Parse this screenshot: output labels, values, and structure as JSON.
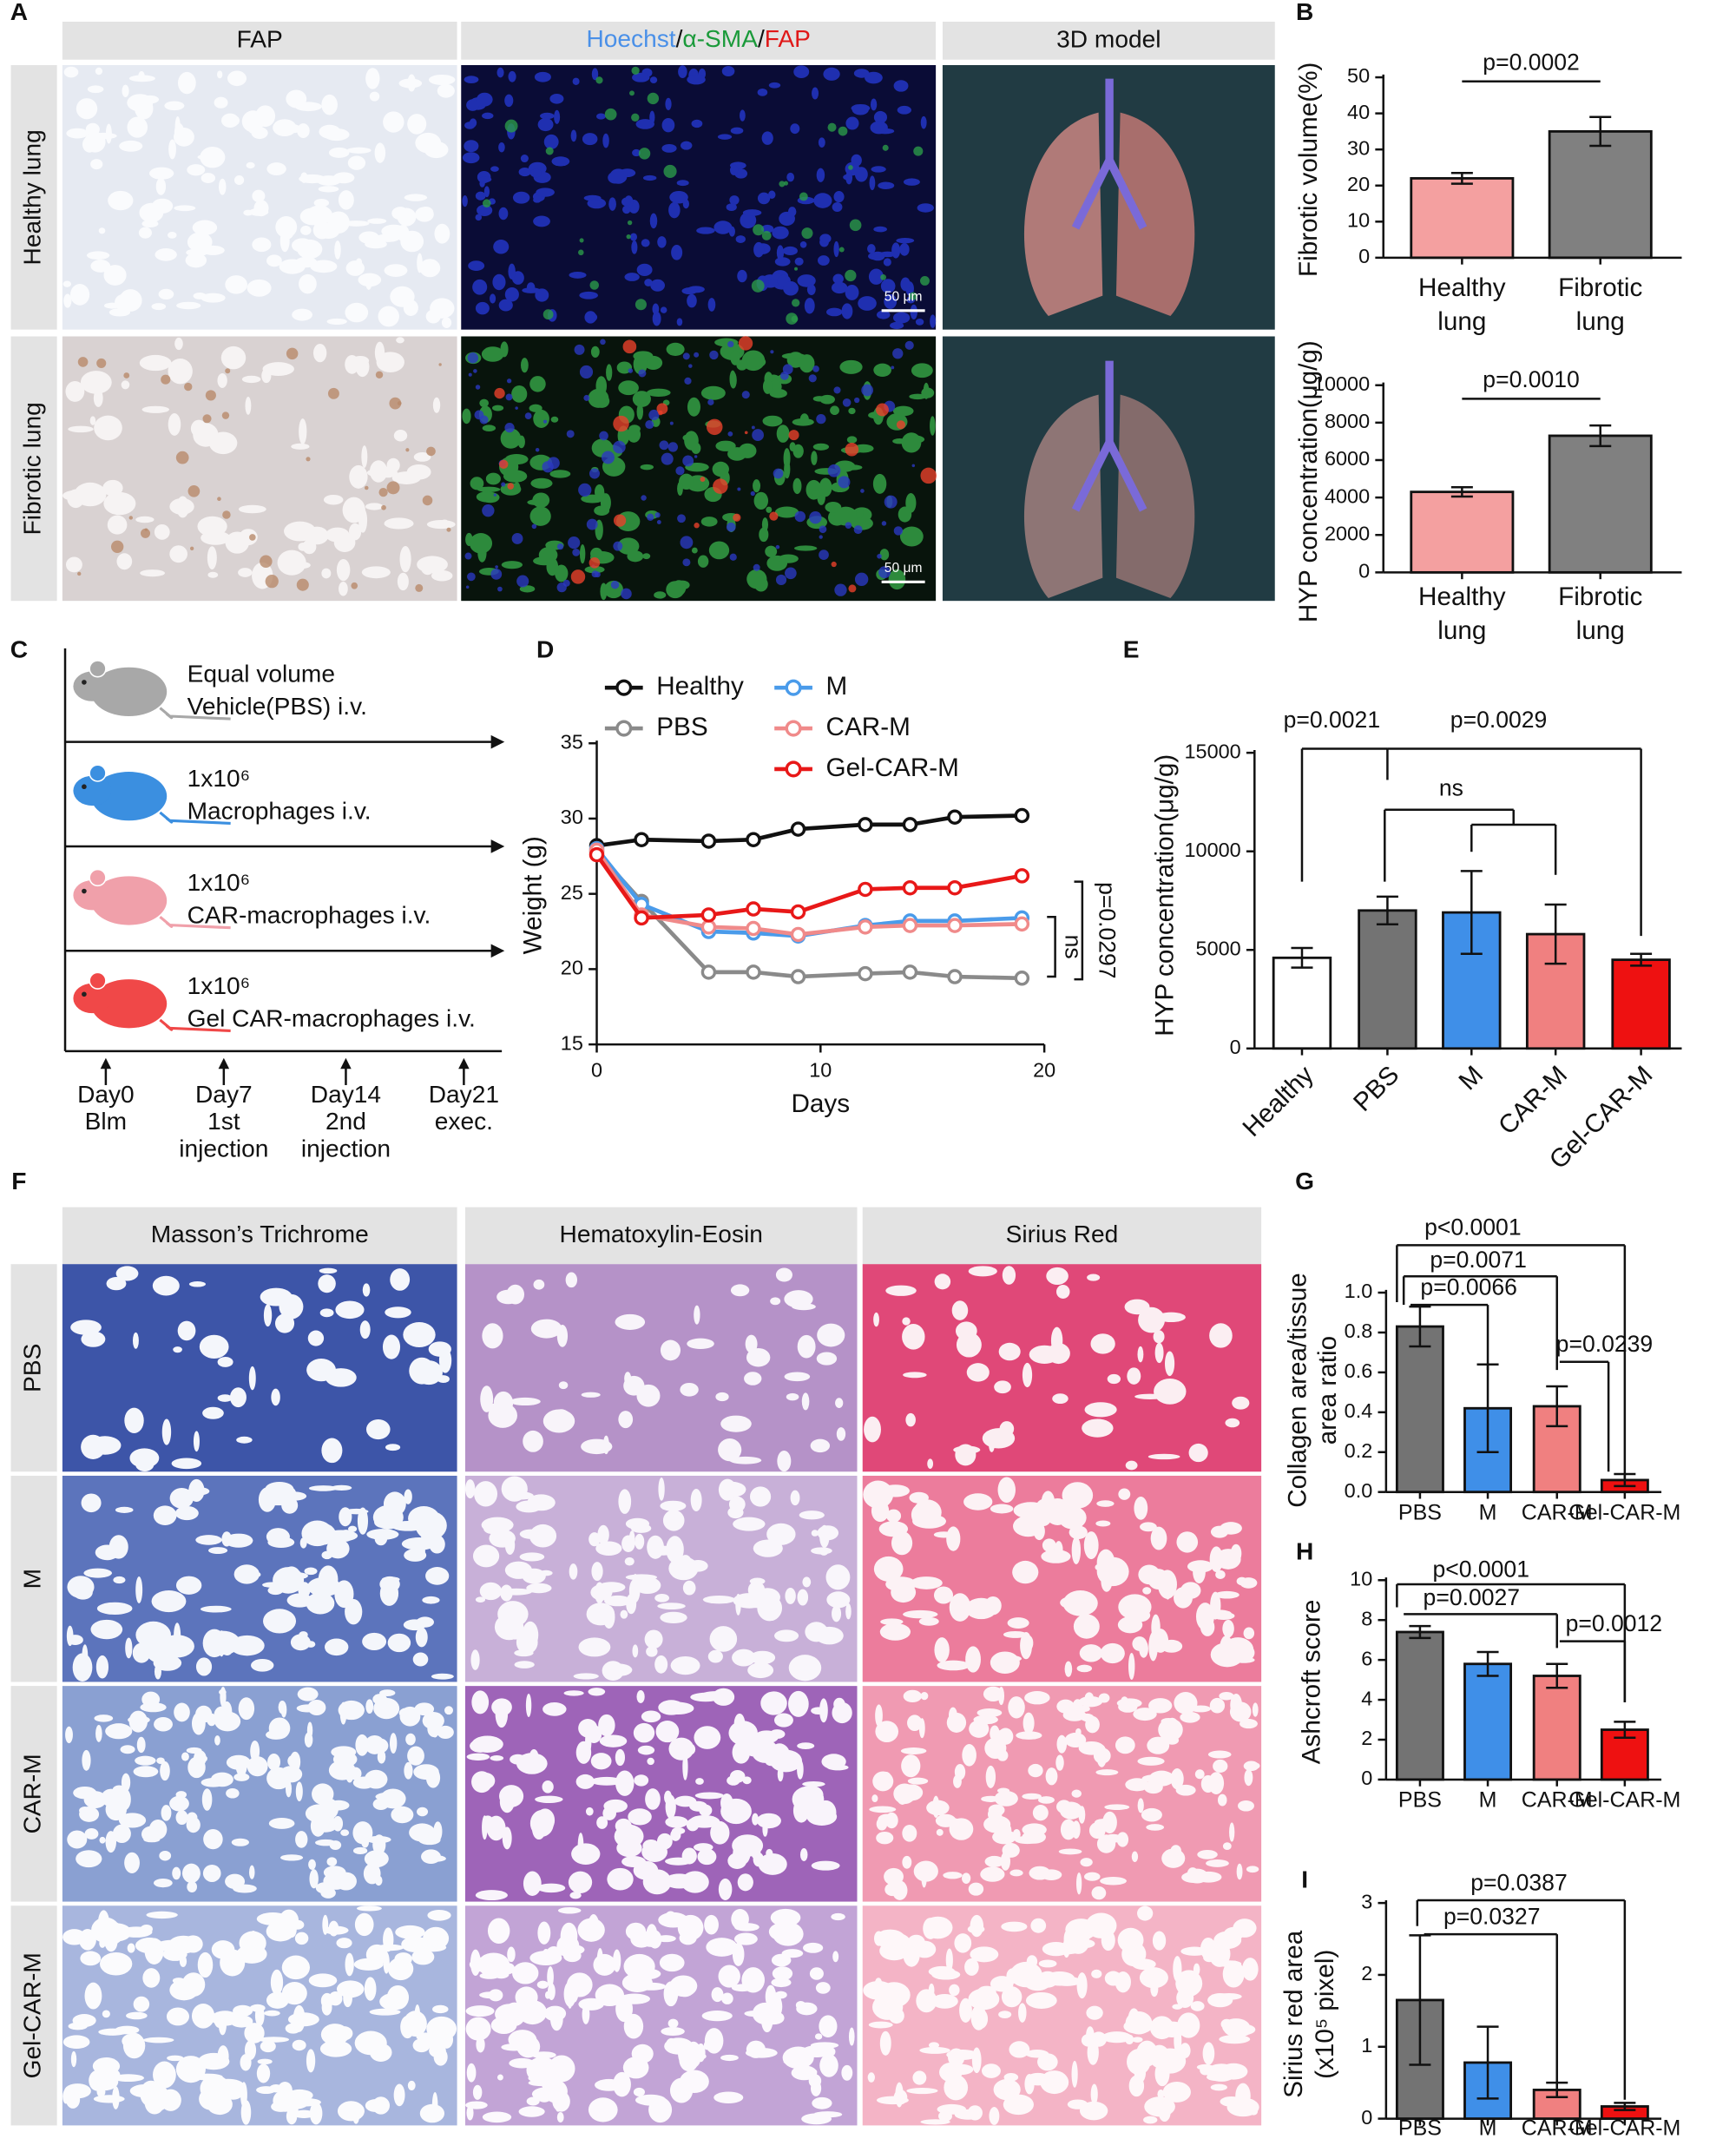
{
  "figure": {
    "panel_labels": [
      "A",
      "B",
      "C",
      "D",
      "E",
      "F",
      "G",
      "H",
      "I"
    ],
    "panel_a": {
      "headers": [
        "FAP",
        "3D model"
      ],
      "stain_header": [
        "Hoechst",
        "/",
        "α-SMA",
        "/",
        "FAP"
      ],
      "rows": [
        "Healthy lung",
        "Fibrotic lung"
      ],
      "scale_bar": "50 μm"
    },
    "panel_c": {
      "groups": [
        [
          "Equal volume",
          "Vehicle(PBS) i.v."
        ],
        [
          "1x10⁶",
          "Macrophages i.v."
        ],
        [
          "1x10⁶",
          "CAR-macrophages i.v."
        ],
        [
          "1x10⁶",
          "Gel CAR-macrophages i.v."
        ]
      ],
      "timeline": [
        [
          "Day0",
          "Blm"
        ],
        [
          "Day7",
          "1st",
          "injection"
        ],
        [
          "Day14",
          "2nd",
          "injection"
        ],
        [
          "Day21",
          "exec."
        ]
      ]
    },
    "panel_f": {
      "headers": [
        "Masson’s Trichrome",
        "Hematoxylin-Eosin",
        "Sirius Red"
      ],
      "rows": [
        "PBS",
        "M",
        "CAR-M",
        "Gel-CAR-M"
      ]
    }
  },
  "chart_data": [
    {
      "type": "bar",
      "ylabel": "Fibrotic volume(%)",
      "categories": [
        "Healthy lung",
        "Fibrotic lung"
      ],
      "values": [
        22,
        35
      ],
      "errors": [
        1.5,
        4
      ],
      "colors": [
        "#f4a0a0",
        "#808080"
      ],
      "ylim": [
        0,
        50
      ],
      "yticks": [
        0,
        10,
        20,
        30,
        40,
        50
      ],
      "annotations": [
        "p=0.0002"
      ]
    },
    {
      "type": "bar",
      "ylabel": "HYP concentration(μg/g)",
      "categories": [
        "Healthy lung",
        "Fibrotic lung"
      ],
      "values": [
        4300,
        7300
      ],
      "errors": [
        250,
        550
      ],
      "colors": [
        "#f4a0a0",
        "#808080"
      ],
      "ylim": [
        0,
        10000
      ],
      "yticks": [
        0,
        2000,
        4000,
        6000,
        8000,
        10000
      ],
      "annotations": [
        "p=0.0010"
      ]
    },
    {
      "type": "line",
      "xlabel": "Days",
      "ylabel": "Weight (g)",
      "x": [
        0,
        2,
        5,
        7,
        9,
        12,
        14,
        16,
        19
      ],
      "series": [
        {
          "name": "Healthy",
          "color": "#111111",
          "values": [
            28.2,
            28.6,
            28.5,
            28.6,
            29.3,
            29.6,
            29.6,
            30.1,
            30.2
          ]
        },
        {
          "name": "PBS",
          "color": "#8a8a8a",
          "values": [
            27.8,
            24.5,
            19.8,
            19.8,
            19.5,
            19.7,
            19.8,
            19.5,
            19.4
          ]
        },
        {
          "name": "M",
          "color": "#4a9bea",
          "values": [
            28.0,
            24.3,
            22.5,
            22.4,
            22.2,
            22.9,
            23.2,
            23.2,
            23.4
          ]
        },
        {
          "name": "CAR-M",
          "color": "#f08a8a",
          "values": [
            27.9,
            23.6,
            22.8,
            22.7,
            22.3,
            22.8,
            22.9,
            22.9,
            23.0
          ]
        },
        {
          "name": "Gel-CAR-M",
          "color": "#e81818",
          "values": [
            27.6,
            23.4,
            23.6,
            24.0,
            23.8,
            25.3,
            25.4,
            25.4,
            26.2
          ]
        }
      ],
      "xlim": [
        0,
        20
      ],
      "xticks": [
        0,
        10,
        20
      ],
      "ylim": [
        15,
        35
      ],
      "yticks": [
        15,
        20,
        25,
        30,
        35
      ],
      "annotations": [
        "p=0.0297",
        "ns"
      ]
    },
    {
      "type": "bar",
      "ylabel": "HYP concentration(μg/g)",
      "categories": [
        "Healthy",
        "PBS",
        "M",
        "CAR-M",
        "Gel-CAR-M"
      ],
      "values": [
        4600,
        7000,
        6900,
        5800,
        4500
      ],
      "errors": [
        500,
        700,
        2100,
        1500,
        300
      ],
      "colors": [
        "#ffffff",
        "#737373",
        "#3f8fe8",
        "#f08080",
        "#ee1111"
      ],
      "ylim": [
        0,
        15000
      ],
      "yticks": [
        0,
        5000,
        10000,
        15000
      ],
      "annotations": [
        "p=0.0021",
        "p=0.0029",
        "ns"
      ]
    },
    {
      "type": "bar",
      "ylabel": [
        "Collagen area/tissue",
        "area ratio"
      ],
      "categories": [
        "PBS",
        "M",
        "CAR-M",
        "Gel-CAR-M"
      ],
      "values": [
        0.83,
        0.42,
        0.43,
        0.06
      ],
      "errors": [
        0.1,
        0.22,
        0.1,
        0.03
      ],
      "colors": [
        "#737373",
        "#3f8fe8",
        "#f08080",
        "#ee1111"
      ],
      "ylim": [
        0,
        1
      ],
      "yticks": [
        {
          "value": 0,
          "label": "0.0"
        },
        0.2,
        0.4,
        0.6,
        0.8,
        {
          "value": 1,
          "label": "1.0"
        }
      ],
      "annotations": [
        "p<0.0001",
        "p=0.0071",
        "p=0.0066",
        "p=0.0239"
      ]
    },
    {
      "type": "bar",
      "ylabel": "Ashcroft score",
      "categories": [
        "PBS",
        "M",
        "CAR-M",
        "Gel-CAR-M"
      ],
      "values": [
        7.4,
        5.8,
        5.2,
        2.5
      ],
      "errors": [
        0.3,
        0.6,
        0.6,
        0.4
      ],
      "colors": [
        "#737373",
        "#3f8fe8",
        "#f08080",
        "#ee1111"
      ],
      "ylim": [
        0,
        10
      ],
      "yticks": [
        0,
        2,
        4,
        6,
        8,
        10
      ],
      "annotations": [
        "p<0.0001",
        "p=0.0027",
        "p=0.0012"
      ]
    },
    {
      "type": "bar",
      "ylabel": [
        "Sirius red area",
        "(x10⁵ pixel)"
      ],
      "categories": [
        "PBS",
        "M",
        "CAR-M",
        "Gel-CAR-M"
      ],
      "values": [
        1.65,
        0.78,
        0.4,
        0.17
      ],
      "errors": [
        0.9,
        0.5,
        0.1,
        0.05
      ],
      "colors": [
        "#737373",
        "#3f8fe8",
        "#f08080",
        "#ee1111"
      ],
      "ylim": [
        0,
        3
      ],
      "yticks": [
        0,
        1,
        2,
        3
      ],
      "annotations": [
        "p=0.0387",
        "p=0.0327"
      ]
    }
  ]
}
